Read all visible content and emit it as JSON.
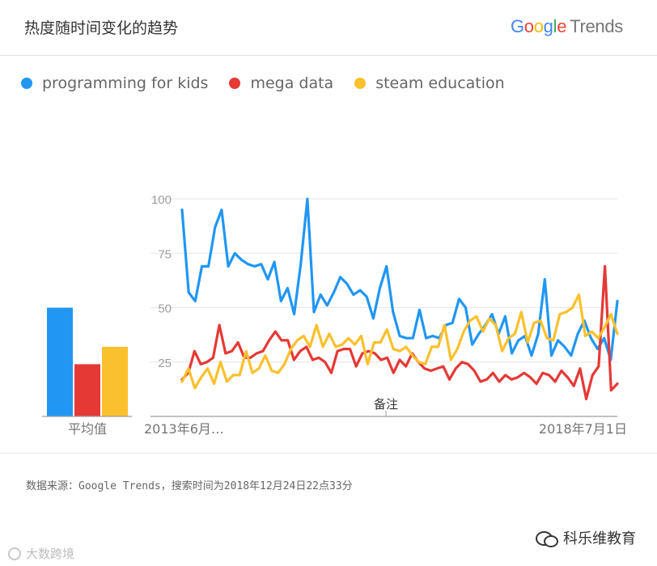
{
  "header": {
    "title": "热度随时间变化的趋势",
    "brand_google": [
      "G",
      "o",
      "o",
      "g",
      "l",
      "e"
    ],
    "brand_trends": "Trends"
  },
  "footer": {
    "source": "数据来源：Google Trends，搜索时间为2018年12月24日22点33分",
    "watermark_left": "大数跨境",
    "watermark_right": "科乐维教育"
  },
  "chart_data": {
    "type": "line",
    "title": "热度随时间变化的趋势",
    "legend_position": "top-left",
    "grid": true,
    "ylim": [
      0,
      100
    ],
    "y_ticks": [
      25,
      50,
      75,
      100
    ],
    "x_tick_labels": [
      "2013年6月…",
      "2018年7月1日"
    ],
    "annotation": "备注",
    "average_bars": {
      "label": "平均值",
      "values": [
        50,
        24,
        32
      ]
    },
    "series": [
      {
        "name": "programming for kids",
        "color": "#2196F3",
        "values": [
          95,
          57,
          53,
          69,
          69,
          87,
          95,
          69,
          75,
          72,
          70,
          69,
          70,
          63,
          71,
          53,
          59,
          47,
          70,
          100,
          48,
          56,
          51,
          57,
          64,
          61,
          56,
          58,
          55,
          45,
          59,
          69,
          48,
          37,
          36,
          36,
          49,
          36,
          37,
          36,
          42,
          43,
          54,
          50,
          33,
          38,
          42,
          47,
          38,
          46,
          29,
          35,
          37,
          28,
          38,
          63,
          28,
          35,
          32,
          28,
          38,
          44,
          36,
          31,
          36,
          26,
          53
        ]
      },
      {
        "name": "mega data",
        "color": "#E53935",
        "values": [
          17,
          20,
          30,
          24,
          25,
          27,
          42,
          29,
          30,
          34,
          27,
          27,
          29,
          30,
          35,
          39,
          35,
          35,
          26,
          30,
          32,
          26,
          27,
          25,
          20,
          30,
          31,
          31,
          23,
          29,
          30,
          29,
          26,
          27,
          20,
          26,
          23,
          29,
          25,
          22,
          21,
          22,
          23,
          17,
          22,
          25,
          24,
          21,
          16,
          17,
          20,
          16,
          19,
          17,
          18,
          20,
          18,
          15,
          20,
          19,
          16,
          21,
          18,
          14,
          22,
          8,
          19,
          23,
          69,
          12,
          15
        ]
      },
      {
        "name": "steam education",
        "color": "#FBC02D",
        "values": [
          16,
          22,
          13,
          18,
          22,
          15,
          25,
          16,
          19,
          19,
          30,
          20,
          22,
          28,
          21,
          20,
          24,
          31,
          35,
          37,
          32,
          42,
          32,
          38,
          32,
          33,
          36,
          33,
          37,
          24,
          34,
          34,
          40,
          31,
          30,
          32,
          28,
          25,
          24,
          32,
          32,
          42,
          26,
          31,
          39,
          44,
          46,
          39,
          45,
          42,
          30,
          36,
          38,
          48,
          34,
          43,
          44,
          36,
          35,
          47,
          48,
          50,
          56,
          37,
          39,
          36,
          41,
          47,
          38
        ]
      }
    ]
  }
}
